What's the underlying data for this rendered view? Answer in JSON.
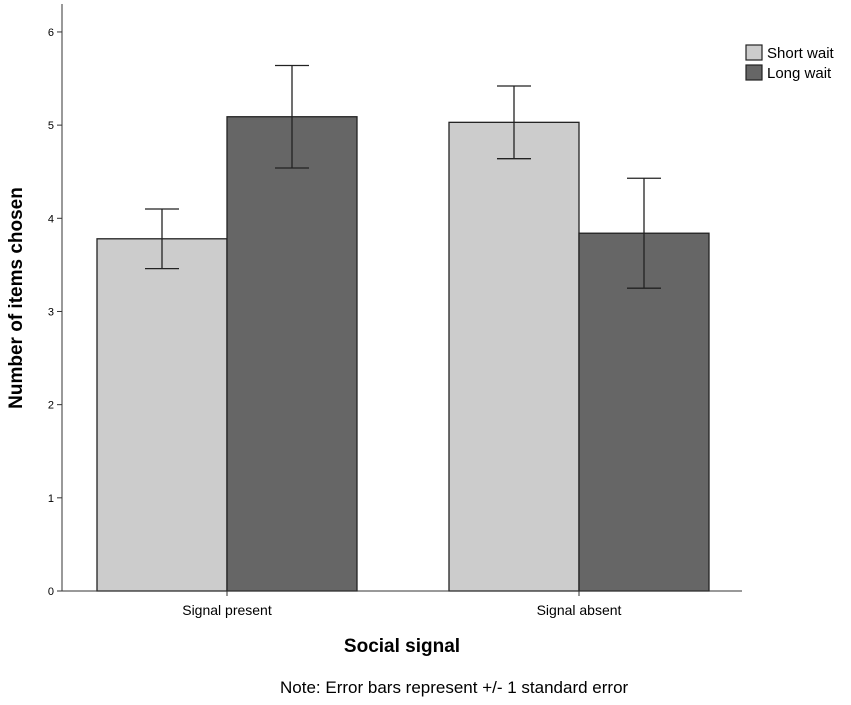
{
  "chart_data": {
    "type": "bar",
    "categories": [
      "Signal present",
      "Signal absent"
    ],
    "series": [
      {
        "name": "Short wait",
        "values": [
          3.78,
          5.03
        ],
        "error": [
          0.32,
          0.39
        ],
        "color": "#cccccc"
      },
      {
        "name": "Long wait",
        "values": [
          5.09,
          3.84
        ],
        "error": [
          0.55,
          0.59
        ],
        "color": "#666666"
      }
    ],
    "xlabel": "Social signal",
    "ylabel": "Number of items chosen",
    "ylim": [
      0,
      6.3
    ],
    "yticks": [
      0,
      1,
      2,
      3,
      4,
      5,
      6
    ],
    "grid": false,
    "legend_position": "top-right"
  },
  "note": {
    "prefix": "Note:",
    "text": "Error bars represent +/- 1 standard error"
  }
}
